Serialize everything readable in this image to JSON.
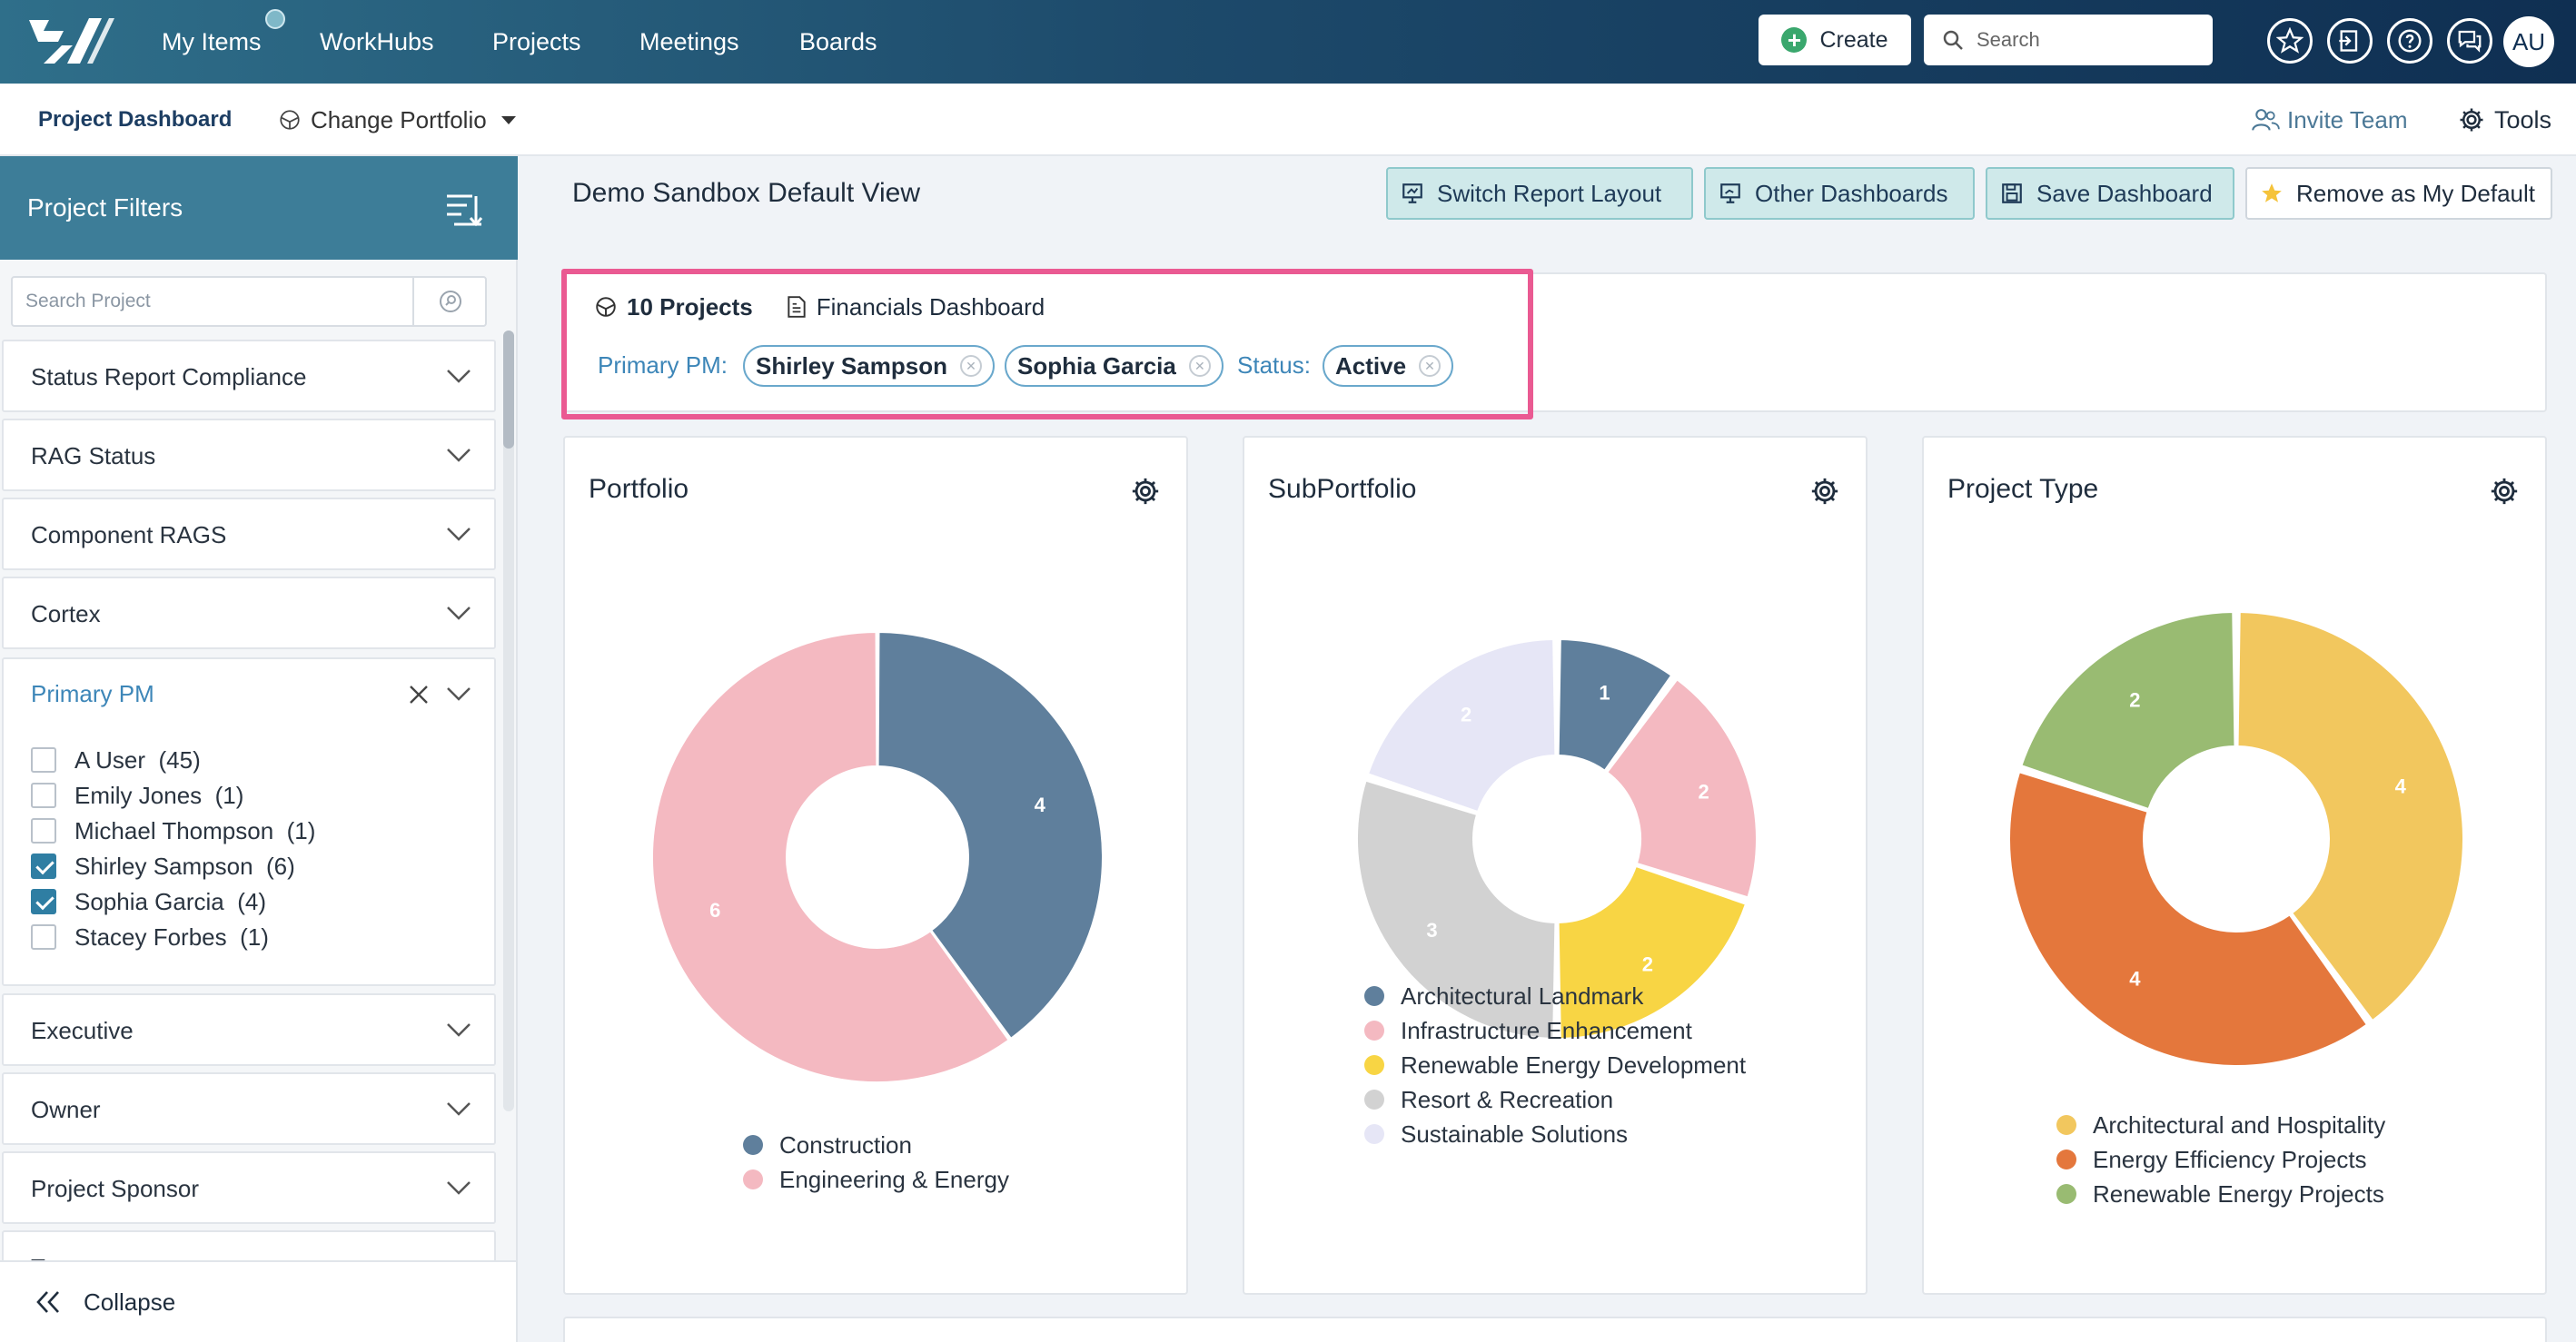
{
  "nav": {
    "items": [
      {
        "label": "My Items"
      },
      {
        "label": "WorkHubs"
      },
      {
        "label": "Projects"
      },
      {
        "label": "Meetings"
      },
      {
        "label": "Boards"
      }
    ],
    "create_label": "Create",
    "search_placeholder": "Search",
    "avatar_initials": "AU",
    "brand_colors": {
      "start": "#2f6f8a",
      "end": "#0f2f52"
    }
  },
  "subnav": {
    "dashboard_label": "Project Dashboard",
    "change_portfolio_label": "Change Portfolio",
    "invite_label": "Invite Team",
    "tools_label": "Tools"
  },
  "sidebar": {
    "title": "Project Filters",
    "search_placeholder": "Search Project",
    "filters_top": [
      {
        "label": "Status Report Compliance"
      },
      {
        "label": "RAG Status"
      },
      {
        "label": "Component RAGS"
      },
      {
        "label": "Cortex"
      }
    ],
    "primary_pm": {
      "label": "Primary PM",
      "options": [
        {
          "name": "A User",
          "count": "(45)",
          "checked": false
        },
        {
          "name": "Emily Jones",
          "count": "(1)",
          "checked": false
        },
        {
          "name": "Michael Thompson",
          "count": "(1)",
          "checked": false
        },
        {
          "name": "Shirley Sampson",
          "count": "(6)",
          "checked": true
        },
        {
          "name": "Sophia Garcia",
          "count": "(4)",
          "checked": true
        },
        {
          "name": "Stacey Forbes",
          "count": "(1)",
          "checked": false
        }
      ]
    },
    "filters_bottom": [
      {
        "label": "Executive"
      },
      {
        "label": "Owner"
      },
      {
        "label": "Project Sponsor"
      },
      {
        "label": "Type"
      }
    ],
    "collapse_label": "Collapse"
  },
  "main": {
    "title": "Demo Sandbox Default View",
    "actions": [
      {
        "label": "Switch Report Layout"
      },
      {
        "label": "Other Dashboards"
      },
      {
        "label": "Save Dashboard"
      },
      {
        "label": "Remove as My Default"
      }
    ],
    "summary": {
      "projects_count": "10 Projects",
      "dashboard_link": "Financials Dashboard",
      "primary_pm_label": "Primary PM:",
      "pm_chips": [
        "Shirley Sampson",
        "Sophia Garcia"
      ],
      "status_label": "Status:",
      "status_chip": "Active"
    }
  },
  "chart_data": [
    {
      "type": "pie",
      "title": "Portfolio",
      "categories": [
        "Construction",
        "Engineering & Energy"
      ],
      "values": [
        4,
        6
      ],
      "colors": [
        "#5f7f9c",
        "#f4b9c1"
      ],
      "legend": "bottom"
    },
    {
      "type": "pie",
      "title": "SubPortfolio",
      "categories": [
        "Architectural Landmark",
        "Infrastructure Enhancement",
        "Renewable Energy Development",
        "Resort & Recreation",
        "Sustainable Solutions"
      ],
      "values": [
        1,
        2,
        2,
        3,
        2
      ],
      "colors": [
        "#5f7f9c",
        "#f4b9c1",
        "#f8d544",
        "#d2d2d2",
        "#e6e6f6"
      ],
      "legend": "bottom"
    },
    {
      "type": "pie",
      "title": "Project Type",
      "categories": [
        "Architectural and Hospitality",
        "Energy Efficiency Projects",
        "Renewable Energy Projects"
      ],
      "values": [
        4,
        4,
        2
      ],
      "colors": [
        "#f2c75e",
        "#e4773c",
        "#99bb72"
      ],
      "legend": "bottom"
    }
  ]
}
